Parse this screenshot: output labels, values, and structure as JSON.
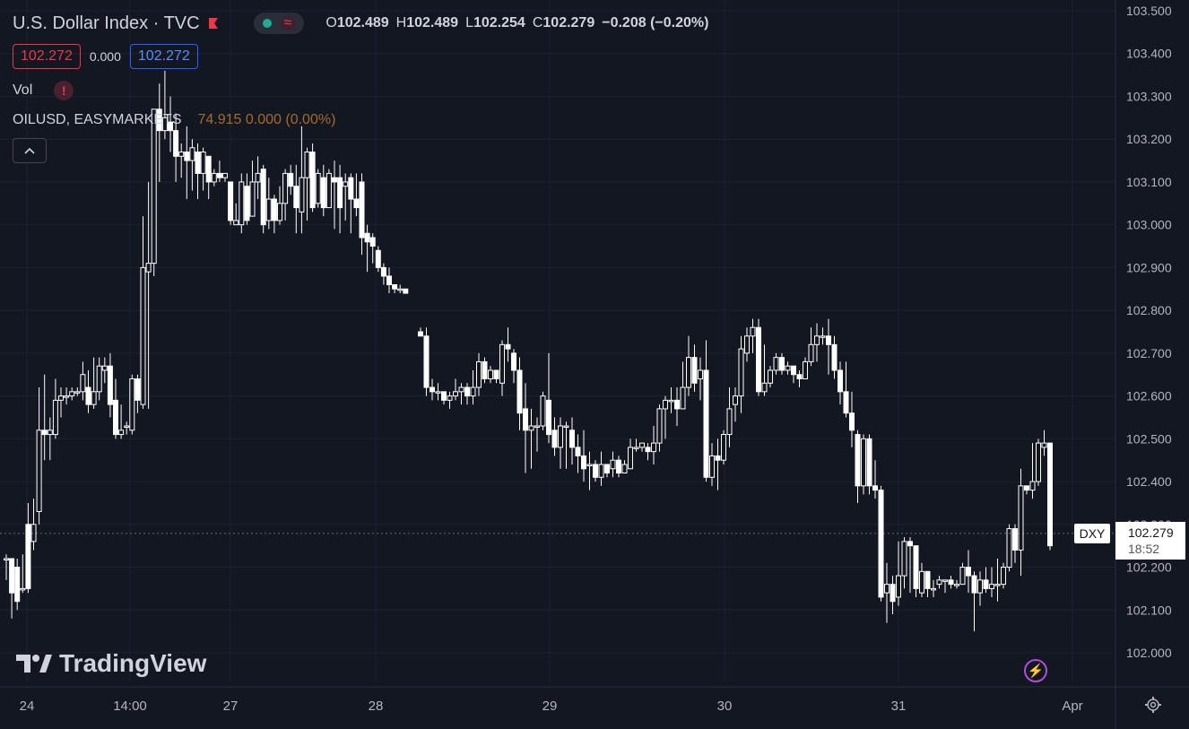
{
  "header": {
    "title": "U.S. Dollar Index · TVC",
    "ohlc": {
      "o_label": "O",
      "o": "102.489",
      "h_label": "H",
      "h": "102.489",
      "l_label": "L",
      "l": "102.254",
      "c_label": "C",
      "c": "102.279",
      "change": "−0.208 (−0.20%)"
    },
    "bid": "102.272",
    "spread": "0.000",
    "ask": "102.272",
    "volume_label": "Vol",
    "warning_icon": "!",
    "compare_symbol": "OILUSD, EASYMARKETS",
    "compare_values": "74.915  0.000 (0.00%)",
    "collapse_icon": "chevron-up-icon"
  },
  "brand": "TradingView",
  "colors": {
    "background": "#131722",
    "grid": "#1e222d",
    "candle": "#ffffff",
    "bid": "#f23645",
    "ask": "#2962ff",
    "compare": "#a56a2c"
  },
  "last_price": {
    "tag": "DXY",
    "price": "102.279",
    "time": "18:52"
  },
  "chart_data": {
    "type": "candlestick",
    "title": "U.S. Dollar Index · TVC",
    "y_ticks": [
      "103.500",
      "103.400",
      "103.300",
      "103.200",
      "103.100",
      "103.000",
      "102.900",
      "102.800",
      "102.700",
      "102.600",
      "102.500",
      "102.400",
      "102.300",
      "102.200",
      "102.100",
      "102.000"
    ],
    "x_ticks": [
      "24",
      "14:00",
      "27",
      "28",
      "29",
      "30",
      "31",
      "Apr"
    ],
    "ylim": [
      101.93,
      103.53
    ],
    "grid": true,
    "gap_after_index": 57,
    "candles": [
      [
        102.22,
        102.22,
        102.17,
        102.23
      ],
      [
        102.22,
        102.14,
        102.08,
        102.22
      ],
      [
        102.2,
        102.12,
        102.1,
        102.22
      ],
      [
        102.15,
        102.15,
        102.14,
        102.23
      ],
      [
        102.3,
        102.15,
        102.14,
        102.35
      ],
      [
        102.26,
        102.3,
        102.24,
        102.36
      ],
      [
        102.33,
        102.52,
        102.3,
        102.62
      ],
      [
        102.52,
        102.51,
        102.45,
        102.65
      ],
      [
        102.51,
        102.52,
        102.45,
        102.55
      ],
      [
        102.51,
        102.59,
        102.5,
        102.64
      ],
      [
        102.59,
        102.6,
        102.55,
        102.62
      ],
      [
        102.6,
        102.6,
        102.58,
        102.62
      ],
      [
        102.6,
        102.61,
        102.59,
        102.62
      ],
      [
        102.61,
        102.61,
        102.6,
        102.62
      ],
      [
        102.61,
        102.65,
        102.59,
        102.68
      ],
      [
        102.62,
        102.58,
        102.56,
        102.66
      ],
      [
        102.58,
        102.61,
        102.57,
        102.69
      ],
      [
        102.61,
        102.67,
        102.59,
        102.69
      ],
      [
        102.66,
        102.67,
        102.63,
        102.69
      ],
      [
        102.67,
        102.58,
        102.55,
        102.7
      ],
      [
        102.59,
        102.51,
        102.5,
        102.64
      ],
      [
        102.51,
        102.52,
        102.5,
        102.58
      ],
      [
        102.53,
        102.53,
        102.51,
        102.54
      ],
      [
        102.52,
        102.64,
        102.51,
        102.65
      ],
      [
        102.64,
        102.59,
        102.56,
        102.65
      ],
      [
        102.58,
        102.9,
        102.57,
        103.02
      ],
      [
        102.89,
        102.91,
        102.57,
        103.1
      ],
      [
        102.91,
        103.27,
        102.88,
        103.27
      ],
      [
        103.27,
        103.22,
        103.1,
        103.33
      ],
      [
        103.22,
        103.25,
        103.2,
        103.36
      ],
      [
        103.24,
        103.22,
        103.17,
        103.3
      ],
      [
        103.22,
        103.16,
        103.1,
        103.26
      ],
      [
        103.16,
        103.17,
        103.11,
        103.19
      ],
      [
        103.17,
        103.15,
        103.06,
        103.23
      ],
      [
        103.15,
        103.18,
        103.08,
        103.2
      ],
      [
        103.17,
        103.12,
        103.06,
        103.19
      ],
      [
        103.12,
        103.17,
        103.08,
        103.18
      ],
      [
        103.16,
        103.1,
        103.06,
        103.16
      ],
      [
        103.1,
        103.12,
        103.09,
        103.13
      ],
      [
        103.12,
        103.11,
        103.1,
        103.15
      ],
      [
        103.11,
        103.12,
        103.1,
        103.12
      ],
      [
        103.1,
        103.01,
        103.0,
        103.1
      ],
      [
        103.0,
        103.01,
        103.0,
        103.05
      ],
      [
        103.0,
        103.1,
        102.98,
        103.12
      ],
      [
        103.09,
        103.01,
        103.0,
        103.12
      ],
      [
        103.02,
        103.1,
        103.02,
        103.15
      ],
      [
        103.1,
        103.12,
        103.06,
        103.16
      ],
      [
        103.13,
        103.0,
        102.98,
        103.14
      ],
      [
        103.01,
        103.06,
        102.99,
        103.11
      ],
      [
        103.06,
        103.01,
        102.98,
        103.07
      ],
      [
        103.01,
        103.05,
        103.0,
        103.09
      ],
      [
        103.05,
        103.12,
        103.01,
        103.13
      ],
      [
        103.12,
        103.09,
        103.07,
        103.14
      ],
      [
        103.09,
        103.04,
        102.98,
        103.14
      ],
      [
        103.03,
        103.11,
        102.98,
        103.23
      ],
      [
        103.11,
        103.17,
        103.01,
        103.18
      ],
      [
        103.17,
        103.04,
        103.03,
        103.19
      ],
      [
        103.05,
        103.12,
        103.04,
        103.13
      ],
      [
        103.11,
        103.04,
        103.02,
        103.14
      ],
      [
        103.04,
        103.12,
        103.04,
        103.13
      ],
      [
        103.11,
        103.1,
        102.99,
        103.15
      ],
      [
        103.11,
        103.04,
        102.98,
        103.14
      ],
      [
        103.09,
        103.1,
        103.01,
        103.12
      ],
      [
        103.11,
        103.06,
        102.98,
        103.12
      ],
      [
        103.06,
        103.04,
        103.02,
        103.12
      ],
      [
        103.1,
        102.97,
        102.93,
        103.12
      ],
      [
        102.98,
        102.96,
        102.89,
        103.0
      ],
      [
        102.97,
        102.95,
        102.91,
        102.98
      ],
      [
        102.94,
        102.9,
        102.89,
        102.95
      ],
      [
        102.9,
        102.88,
        102.86,
        102.91
      ],
      [
        102.88,
        102.86,
        102.84,
        102.9
      ],
      [
        102.86,
        102.85,
        102.84,
        102.86
      ],
      [
        102.85,
        102.85,
        102.84,
        102.86
      ],
      [
        102.85,
        102.84,
        102.84,
        102.85
      ]
    ],
    "candles_day2": [
      [
        102.75,
        102.74,
        102.74,
        102.76
      ],
      [
        102.74,
        102.62,
        102.6,
        102.76
      ],
      [
        102.62,
        102.61,
        102.59,
        102.64
      ],
      [
        102.61,
        102.61,
        102.59,
        102.63
      ],
      [
        102.61,
        102.59,
        102.58,
        102.61
      ],
      [
        102.59,
        102.6,
        102.57,
        102.61
      ],
      [
        102.6,
        102.61,
        102.59,
        102.64
      ],
      [
        102.61,
        102.62,
        102.58,
        102.63
      ],
      [
        102.62,
        102.6,
        102.58,
        102.63
      ],
      [
        102.6,
        102.62,
        102.58,
        102.66
      ],
      [
        102.62,
        102.68,
        102.6,
        102.7
      ],
      [
        102.68,
        102.64,
        102.63,
        102.69
      ],
      [
        102.64,
        102.66,
        102.63,
        102.67
      ],
      [
        102.66,
        102.64,
        102.63,
        102.66
      ],
      [
        102.63,
        102.72,
        102.6,
        102.73
      ],
      [
        102.72,
        102.71,
        102.68,
        102.76
      ],
      [
        102.7,
        102.66,
        102.63,
        102.71
      ],
      [
        102.66,
        102.56,
        102.52,
        102.69
      ],
      [
        102.57,
        102.52,
        102.42,
        102.63
      ],
      [
        102.52,
        102.53,
        102.43,
        102.57
      ],
      [
        102.53,
        102.53,
        102.47,
        102.55
      ],
      [
        102.53,
        102.6,
        102.52,
        102.61
      ],
      [
        102.59,
        102.51,
        102.49,
        102.7
      ],
      [
        102.52,
        102.48,
        102.46,
        102.55
      ],
      [
        102.48,
        102.53,
        102.43,
        102.55
      ],
      [
        102.53,
        102.53,
        102.43,
        102.54
      ],
      [
        102.52,
        102.48,
        102.44,
        102.55
      ],
      [
        102.48,
        102.46,
        102.42,
        102.51
      ],
      [
        102.46,
        102.43,
        102.4,
        102.52
      ],
      [
        102.44,
        102.44,
        102.38,
        102.47
      ],
      [
        102.44,
        102.41,
        102.4,
        102.45
      ],
      [
        102.41,
        102.44,
        102.39,
        102.47
      ],
      [
        102.44,
        102.42,
        102.41,
        102.44
      ],
      [
        102.43,
        102.45,
        102.41,
        102.47
      ],
      [
        102.45,
        102.42,
        102.41,
        102.46
      ],
      [
        102.42,
        102.44,
        102.43,
        102.45
      ],
      [
        102.43,
        102.48,
        102.43,
        102.5
      ],
      [
        102.48,
        102.48,
        102.47,
        102.5
      ],
      [
        102.48,
        102.49,
        102.47,
        102.49
      ],
      [
        102.48,
        102.47,
        102.45,
        102.49
      ],
      [
        102.47,
        102.49,
        102.44,
        102.53
      ],
      [
        102.49,
        102.57,
        102.47,
        102.58
      ],
      [
        102.57,
        102.59,
        102.5,
        102.6
      ],
      [
        102.59,
        102.59,
        102.56,
        102.62
      ],
      [
        102.59,
        102.57,
        102.53,
        102.62
      ],
      [
        102.57,
        102.62,
        102.57,
        102.68
      ],
      [
        102.62,
        102.69,
        102.6,
        102.74
      ],
      [
        102.69,
        102.63,
        102.61,
        102.72
      ],
      [
        102.64,
        102.66,
        102.59,
        102.69
      ],
      [
        102.66,
        102.41,
        102.4,
        102.73
      ],
      [
        102.41,
        102.46,
        102.39,
        102.49
      ],
      [
        102.46,
        102.45,
        102.38,
        102.5
      ],
      [
        102.45,
        102.51,
        102.44,
        102.52
      ],
      [
        102.51,
        102.57,
        102.48,
        102.62
      ],
      [
        102.58,
        102.6,
        102.54,
        102.62
      ],
      [
        102.6,
        102.71,
        102.56,
        102.74
      ],
      [
        102.7,
        102.74,
        102.68,
        102.76
      ],
      [
        102.74,
        102.76,
        102.7,
        102.78
      ],
      [
        102.76,
        102.61,
        102.6,
        102.78
      ],
      [
        102.61,
        102.63,
        102.6,
        102.72
      ],
      [
        102.63,
        102.66,
        102.62,
        102.67
      ],
      [
        102.66,
        102.69,
        102.65,
        102.7
      ],
      [
        102.69,
        102.66,
        102.65,
        102.7
      ],
      [
        102.66,
        102.67,
        102.65,
        102.68
      ],
      [
        102.67,
        102.65,
        102.63,
        102.67
      ],
      [
        102.65,
        102.64,
        102.62,
        102.66
      ],
      [
        102.64,
        102.68,
        102.64,
        102.69
      ],
      [
        102.68,
        102.72,
        102.67,
        102.76
      ],
      [
        102.72,
        102.74,
        102.68,
        102.77
      ],
      [
        102.74,
        102.74,
        102.72,
        102.76
      ],
      [
        102.74,
        102.72,
        102.65,
        102.78
      ],
      [
        102.72,
        102.66,
        102.64,
        102.74
      ],
      [
        102.66,
        102.61,
        102.58,
        102.68
      ],
      [
        102.61,
        102.56,
        102.55,
        102.68
      ],
      [
        102.56,
        102.52,
        102.48,
        102.61
      ],
      [
        102.51,
        102.39,
        102.35,
        102.52
      ],
      [
        102.39,
        102.5,
        102.37,
        102.51
      ],
      [
        102.5,
        102.39,
        102.37,
        102.51
      ],
      [
        102.39,
        102.38,
        102.36,
        102.45
      ],
      [
        102.38,
        102.13,
        102.12,
        102.39
      ],
      [
        102.14,
        102.16,
        102.07,
        102.21
      ],
      [
        102.16,
        102.12,
        102.09,
        102.18
      ],
      [
        102.13,
        102.18,
        102.11,
        102.26
      ],
      [
        102.18,
        102.26,
        102.15,
        102.27
      ],
      [
        102.26,
        102.25,
        102.14,
        102.27
      ],
      [
        102.25,
        102.15,
        102.13,
        102.21
      ],
      [
        102.14,
        102.19,
        102.13,
        102.21
      ],
      [
        102.19,
        102.15,
        102.13,
        102.17
      ],
      [
        102.15,
        102.15,
        102.13,
        102.17
      ],
      [
        102.16,
        102.17,
        102.15,
        102.18
      ],
      [
        102.17,
        102.17,
        102.14,
        102.17
      ],
      [
        102.17,
        102.16,
        102.15,
        102.18
      ],
      [
        102.16,
        102.16,
        102.15,
        102.17
      ],
      [
        102.16,
        102.2,
        102.16,
        102.21
      ],
      [
        102.2,
        102.18,
        102.14,
        102.24
      ],
      [
        102.18,
        102.14,
        102.05,
        102.19
      ],
      [
        102.14,
        102.17,
        102.11,
        102.19
      ],
      [
        102.17,
        102.15,
        102.14,
        102.2
      ],
      [
        102.15,
        102.16,
        102.13,
        102.2
      ],
      [
        102.16,
        102.16,
        102.12,
        102.22
      ],
      [
        102.16,
        102.2,
        102.15,
        102.21
      ],
      [
        102.2,
        102.29,
        102.19,
        102.3
      ],
      [
        102.29,
        102.24,
        102.21,
        102.3
      ],
      [
        102.24,
        102.39,
        102.18,
        102.43
      ],
      [
        102.39,
        102.38,
        102.37,
        102.39
      ],
      [
        102.38,
        102.4,
        102.36,
        102.49
      ],
      [
        102.4,
        102.49,
        102.39,
        102.5
      ],
      [
        102.48,
        102.49,
        102.46,
        102.52
      ],
      [
        102.49,
        102.25,
        102.24,
        102.49
      ]
    ]
  }
}
